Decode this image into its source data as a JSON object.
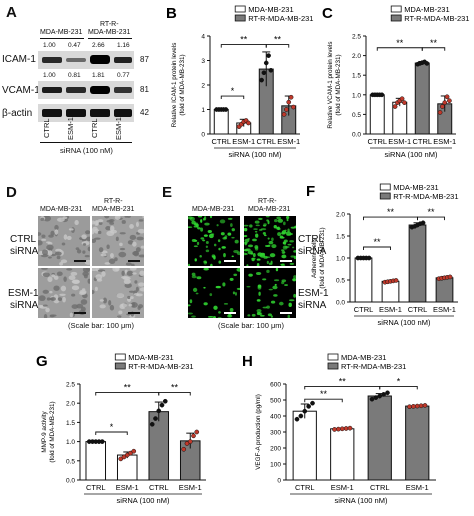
{
  "panelA": {
    "label": "A",
    "group1": "MDA-MB-231",
    "group2_top": "RT-R-",
    "group2_bottom": "MDA-MB-231",
    "icam_label": "ICAM-1",
    "icam_values": [
      "1.00",
      "0.47",
      "2.66",
      "1.16"
    ],
    "icam_kda": "87",
    "vcam_label": "VCAM-1",
    "vcam_values": [
      "1.00",
      "0.81",
      "1.81",
      "0.77"
    ],
    "vcam_kda": "81",
    "actin_label": "β-actin",
    "actin_kda": "42",
    "lanes": [
      "CTRL",
      "ESM-1",
      "CTRL",
      "ESM-1"
    ],
    "xlabel": "siRNA (100 nM)"
  },
  "panelD": {
    "label": "D",
    "col1": "MDA-MB-231",
    "col2_top": "RT-R-",
    "col2_bottom": "MDA-MB-231",
    "row1_a": "CTRL",
    "row1_b": "siRNA",
    "row2_a": "ESM-1",
    "row2_b": "siRNA",
    "caption": "(Scale bar: 100 μm)"
  },
  "panelE": {
    "label": "E",
    "col1": "MDA-MB-231",
    "col2_top": "RT-R-",
    "col2_bottom": "MDA-MB-231",
    "row1_a": "CTRL",
    "row1_b": "siRNA",
    "row2_a": "ESM-1",
    "row2_b": "siRNA",
    "caption": "(Scale bar: 100 μm)"
  },
  "colors": {
    "white_bar": "#ffffff",
    "gray_bar": "#7a7a7a",
    "dot": "#c0392b",
    "fluor": "#2fd12f"
  },
  "chart_data": [
    {
      "id": "B",
      "label": "B",
      "type": "bar",
      "legend": [
        "MDA-MB-231",
        "RT-R-MDA-MB-231"
      ],
      "categories": [
        "CTRL",
        "ESM-1",
        "CTRL",
        "ESM-1"
      ],
      "values": [
        1.0,
        0.45,
        2.65,
        1.15
      ],
      "errors": [
        0.0,
        0.15,
        0.7,
        0.4
      ],
      "points": [
        [
          1,
          1,
          1,
          1,
          1
        ],
        [
          0.3,
          0.4,
          0.5,
          0.55,
          0.45
        ],
        [
          2.2,
          2.5,
          2.9,
          3.2,
          2.6
        ],
        [
          0.8,
          1.0,
          1.3,
          1.5,
          1.1
        ]
      ],
      "ylabel": "Relative ICAM-1 protein levels\n(fold of MDA-MB-231)",
      "xlabel": "siRNA (100 nM)",
      "ylim": [
        0,
        4
      ],
      "yticks": [
        0,
        1,
        2,
        3,
        4
      ],
      "sig": [
        {
          "from": 0,
          "to": 1,
          "text": "*",
          "level": 1.55
        },
        {
          "from": 0,
          "to": 2,
          "text": "**",
          "level": 3.65
        },
        {
          "from": 2,
          "to": 3,
          "text": "**",
          "level": 3.65
        }
      ]
    },
    {
      "id": "C",
      "label": "C",
      "type": "bar",
      "legend": [
        "MDA-MB-231",
        "RT-R-MDA-MB-231"
      ],
      "categories": [
        "CTRL",
        "ESM-1",
        "CTRL",
        "ESM-1"
      ],
      "values": [
        1.0,
        0.81,
        1.81,
        0.77
      ],
      "errors": [
        0.0,
        0.1,
        0.04,
        0.2
      ],
      "points": [
        [
          1,
          1,
          1,
          1,
          1
        ],
        [
          0.7,
          0.8,
          0.85,
          0.9,
          0.8
        ],
        [
          1.78,
          1.8,
          1.82,
          1.84,
          1.8
        ],
        [
          0.55,
          0.7,
          0.8,
          0.95,
          0.85
        ]
      ],
      "ylabel": "Relative VCAM-1 protein levels\n(fold of MDA-MB-231)",
      "xlabel": "siRNA (100 nM)",
      "ylim": [
        0,
        2.5
      ],
      "yticks": [
        0.0,
        0.5,
        1.0,
        1.5,
        2.0,
        2.5
      ],
      "sig": [
        {
          "from": 0,
          "to": 2,
          "text": "**",
          "level": 2.2
        },
        {
          "from": 2,
          "to": 3,
          "text": "**",
          "level": 2.2
        }
      ]
    },
    {
      "id": "F",
      "label": "F",
      "type": "bar",
      "legend": [
        "MDA-MB-231",
        "RT-R-MDA-MB-231"
      ],
      "categories": [
        "CTRL",
        "ESM-1",
        "CTRL",
        "ESM-1"
      ],
      "values": [
        1.0,
        0.47,
        1.75,
        0.55
      ],
      "errors": [
        0.0,
        0.02,
        0.05,
        0.03
      ],
      "points": [
        [
          1,
          1,
          1,
          1,
          1
        ],
        [
          0.45,
          0.46,
          0.47,
          0.48,
          0.49
        ],
        [
          1.7,
          1.72,
          1.75,
          1.78,
          1.8
        ],
        [
          0.53,
          0.54,
          0.55,
          0.56,
          0.57
        ]
      ],
      "ylabel": "Adherent cells\n(fold of MDA-MB-231)",
      "xlabel": "siRNA (100 nM)",
      "ylim": [
        0,
        2.0
      ],
      "yticks": [
        0.0,
        0.5,
        1.0,
        1.5,
        2.0
      ],
      "sig": [
        {
          "from": 0,
          "to": 1,
          "text": "**",
          "level": 1.25
        },
        {
          "from": 0,
          "to": 2,
          "text": "**",
          "level": 1.93
        },
        {
          "from": 2,
          "to": 3,
          "text": "**",
          "level": 1.93
        }
      ]
    },
    {
      "id": "G",
      "label": "G",
      "type": "bar",
      "legend": [
        "MDA-MB-231",
        "RT-R-MDA-MB-231"
      ],
      "categories": [
        "CTRL",
        "ESM-1",
        "CTRL",
        "ESM-1"
      ],
      "values": [
        1.0,
        0.65,
        1.78,
        1.02
      ],
      "errors": [
        0.0,
        0.08,
        0.25,
        0.2
      ],
      "points": [
        [
          1,
          1,
          1,
          1,
          1
        ],
        [
          0.55,
          0.6,
          0.65,
          0.7,
          0.75
        ],
        [
          1.45,
          1.6,
          1.8,
          1.95,
          2.05
        ],
        [
          0.8,
          0.95,
          1.0,
          1.15,
          1.25
        ]
      ],
      "ylabel": "MMP-9 activity\n(fold of MDA-MB-231)",
      "xlabel": "siRNA (100 nM)",
      "ylim": [
        0,
        2.5
      ],
      "yticks": [
        0.0,
        0.5,
        1.0,
        1.5,
        2.0,
        2.5
      ],
      "sig": [
        {
          "from": 0,
          "to": 1,
          "text": "*",
          "level": 1.25
        },
        {
          "from": 0,
          "to": 2,
          "text": "**",
          "level": 2.28
        },
        {
          "from": 2,
          "to": 3,
          "text": "**",
          "level": 2.28
        }
      ]
    },
    {
      "id": "H",
      "label": "H",
      "type": "bar",
      "legend": [
        "MDA-MB-231",
        "RT-R-MDA-MB-231"
      ],
      "categories": [
        "CTRL",
        "ESM-1",
        "CTRL",
        "ESM-1"
      ],
      "values": [
        430,
        320,
        525,
        462
      ],
      "errors": [
        45,
        5,
        15,
        4
      ],
      "points": [
        [
          380,
          400,
          430,
          460,
          480
        ],
        [
          316,
          318,
          320,
          322,
          324
        ],
        [
          505,
          515,
          525,
          535,
          545
        ],
        [
          458,
          460,
          462,
          464,
          466
        ]
      ],
      "ylabel": "VEGF-A production (pg/ml)",
      "xlabel": "siRNA (100 nM)",
      "ylim": [
        0,
        600
      ],
      "yticks": [
        0,
        100,
        200,
        300,
        400,
        500,
        600
      ],
      "sig": [
        {
          "from": 0,
          "to": 1,
          "text": "**",
          "level": 505
        },
        {
          "from": 0,
          "to": 2,
          "text": "**",
          "level": 585
        },
        {
          "from": 2,
          "to": 3,
          "text": "*",
          "level": 585
        }
      ]
    }
  ]
}
